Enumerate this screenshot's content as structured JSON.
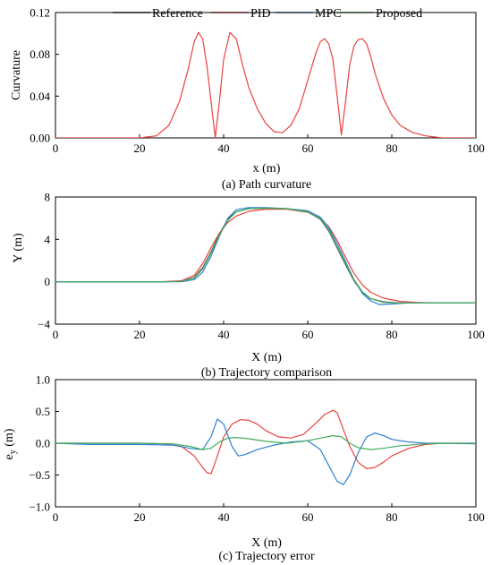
{
  "legend": [
    {
      "name": "Reference",
      "color": "#3a3a3a"
    },
    {
      "name": "PID",
      "color": "#e8433f"
    },
    {
      "name": "MPC",
      "color": "#2f7fd4"
    },
    {
      "name": "Proposed",
      "color": "#3fae5a"
    }
  ],
  "chart_data": [
    {
      "type": "line",
      "caption": "(a) Path curvature",
      "xlabel": "x (m)",
      "ylabel": "Curvature",
      "xlim": [
        0,
        100
      ],
      "ylim": [
        0,
        0.12
      ],
      "xticks": [
        "0",
        "20",
        "40",
        "60",
        "80",
        "100"
      ],
      "yticks": [
        "0.00",
        "0.04",
        "0.08",
        "0.12"
      ],
      "series": [
        {
          "name": "PID",
          "color": "#e8433f",
          "x": [
            0,
            20,
            24,
            27,
            29.5,
            31.5,
            33,
            34,
            35,
            36,
            37,
            38,
            39,
            40,
            41.5,
            43,
            44.5,
            46,
            48,
            50,
            52,
            54,
            56,
            58,
            60,
            62,
            63,
            64,
            65,
            66,
            67,
            68,
            69,
            70,
            71,
            72,
            73,
            74,
            75,
            76,
            78,
            80,
            82,
            85,
            88,
            92,
            100
          ],
          "y": [
            0,
            0,
            0.002,
            0.012,
            0.035,
            0.065,
            0.092,
            0.101,
            0.095,
            0.07,
            0.035,
            0.0,
            0.035,
            0.075,
            0.101,
            0.095,
            0.07,
            0.048,
            0.028,
            0.014,
            0.006,
            0.005,
            0.012,
            0.028,
            0.055,
            0.082,
            0.092,
            0.095,
            0.09,
            0.075,
            0.04,
            0.003,
            0.035,
            0.07,
            0.088,
            0.094,
            0.095,
            0.09,
            0.078,
            0.062,
            0.038,
            0.022,
            0.012,
            0.005,
            0.002,
            0.0,
            0
          ]
        }
      ]
    },
    {
      "type": "line",
      "caption": "(b) Trajectory comparison",
      "xlabel": "X (m)",
      "ylabel": "Y (m)",
      "xlim": [
        0,
        100
      ],
      "ylim": [
        -4,
        8
      ],
      "xticks": [
        "0",
        "20",
        "40",
        "60",
        "80",
        "100"
      ],
      "yticks": [
        "−4",
        "0",
        "4",
        "8"
      ],
      "series": [
        {
          "name": "Reference",
          "color": "#3a3a3a",
          "x": [
            0,
            25,
            30,
            33,
            35,
            37,
            39,
            41,
            43,
            46,
            50,
            55,
            60,
            63,
            65,
            67,
            69,
            71,
            73,
            75,
            78,
            82,
            100
          ],
          "y": [
            0,
            0,
            0.05,
            0.4,
            1.3,
            2.8,
            4.5,
            5.9,
            6.6,
            6.9,
            6.95,
            6.9,
            6.6,
            5.9,
            4.8,
            3.2,
            1.6,
            0.1,
            -1.0,
            -1.6,
            -1.9,
            -2.0,
            -2.0
          ]
        },
        {
          "name": "PID",
          "color": "#e8433f",
          "x": [
            0,
            25,
            30,
            33,
            35,
            37,
            39,
            41,
            43,
            46,
            50,
            55,
            60,
            63,
            65,
            67,
            69,
            71,
            73,
            75,
            78,
            82,
            86,
            90,
            100
          ],
          "y": [
            0,
            0,
            0.1,
            0.6,
            1.7,
            3.2,
            4.6,
            5.6,
            6.2,
            6.65,
            6.85,
            6.85,
            6.55,
            6.0,
            5.2,
            3.9,
            2.3,
            0.8,
            -0.3,
            -1.0,
            -1.55,
            -1.85,
            -1.95,
            -2.0,
            -2.0
          ]
        },
        {
          "name": "MPC",
          "color": "#2f7fd4",
          "x": [
            0,
            25,
            30,
            33,
            35,
            37,
            39,
            41,
            43,
            46,
            50,
            55,
            60,
            63,
            65,
            67,
            69,
            71,
            73,
            75,
            77,
            80,
            84,
            100
          ],
          "y": [
            0,
            0,
            0.0,
            0.2,
            0.9,
            2.4,
            4.3,
            6.0,
            6.8,
            7.0,
            7.0,
            6.9,
            6.7,
            6.1,
            5.1,
            3.6,
            1.9,
            0.2,
            -1.1,
            -1.8,
            -2.15,
            -2.1,
            -2.0,
            -2.0
          ]
        },
        {
          "name": "Proposed",
          "color": "#3fae5a",
          "x": [
            0,
            25,
            30,
            33,
            35,
            37,
            39,
            41,
            43,
            46,
            50,
            55,
            60,
            63,
            65,
            67,
            69,
            71,
            73,
            75,
            78,
            82,
            100
          ],
          "y": [
            0,
            0,
            0.04,
            0.35,
            1.2,
            2.7,
            4.4,
            5.8,
            6.6,
            6.9,
            6.95,
            6.9,
            6.6,
            5.95,
            4.9,
            3.3,
            1.7,
            0.2,
            -0.95,
            -1.6,
            -1.95,
            -2.0,
            -2.0
          ]
        }
      ]
    },
    {
      "type": "line",
      "caption": "(c) Trajectory error",
      "xlabel": "X (m)",
      "ylabel": "e_y (m)",
      "xlim": [
        0,
        100
      ],
      "ylim": [
        -1.0,
        1.0
      ],
      "xticks": [
        "0",
        "20",
        "40",
        "60",
        "80",
        "100"
      ],
      "yticks": [
        "−1.0",
        "−0.5",
        "0.0",
        "0.5",
        "1.0"
      ],
      "series": [
        {
          "name": "PID",
          "color": "#e8433f",
          "x": [
            0,
            20,
            26,
            30,
            33,
            35,
            36,
            37,
            38,
            40,
            42,
            44,
            46,
            48,
            50,
            53,
            56,
            59,
            62,
            64,
            66,
            67,
            68,
            70,
            72,
            74,
            76,
            78,
            80,
            84,
            88,
            92,
            100
          ],
          "y": [
            0,
            0,
            -0.01,
            -0.05,
            -0.2,
            -0.38,
            -0.46,
            -0.48,
            -0.3,
            0.1,
            0.3,
            0.37,
            0.36,
            0.3,
            0.2,
            0.1,
            0.08,
            0.14,
            0.32,
            0.45,
            0.52,
            0.48,
            0.3,
            -0.05,
            -0.3,
            -0.4,
            -0.38,
            -0.3,
            -0.2,
            -0.08,
            -0.02,
            0.0,
            0.0
          ]
        },
        {
          "name": "MPC",
          "color": "#2f7fd4",
          "x": [
            0,
            8,
            20,
            28,
            32,
            35,
            37,
            38.5,
            40,
            42,
            43.5,
            45,
            48,
            52,
            56,
            60,
            63,
            65,
            67,
            68.5,
            70,
            72,
            74,
            76,
            78,
            80,
            84,
            88,
            92,
            100
          ],
          "y": [
            0,
            -0.02,
            -0.02,
            -0.03,
            -0.08,
            -0.1,
            0.1,
            0.38,
            0.3,
            -0.05,
            -0.2,
            -0.18,
            -0.1,
            -0.03,
            0.02,
            0.04,
            -0.1,
            -0.35,
            -0.6,
            -0.65,
            -0.5,
            -0.15,
            0.1,
            0.16,
            0.12,
            0.06,
            0.02,
            0.0,
            0.0,
            -0.01
          ]
        },
        {
          "name": "Proposed",
          "color": "#3fae5a",
          "x": [
            0,
            20,
            28,
            32,
            35,
            37,
            39,
            41,
            43,
            46,
            50,
            55,
            60,
            63,
            66,
            68,
            70,
            72,
            75,
            78,
            82,
            88,
            95,
            100
          ],
          "y": [
            0,
            0,
            -0.01,
            -0.05,
            -0.1,
            -0.08,
            0.02,
            0.08,
            0.09,
            0.07,
            0.03,
            0.0,
            0.04,
            0.08,
            0.12,
            0.1,
            0.0,
            -0.07,
            -0.1,
            -0.08,
            -0.04,
            -0.01,
            0.0,
            0.0
          ]
        }
      ]
    }
  ]
}
